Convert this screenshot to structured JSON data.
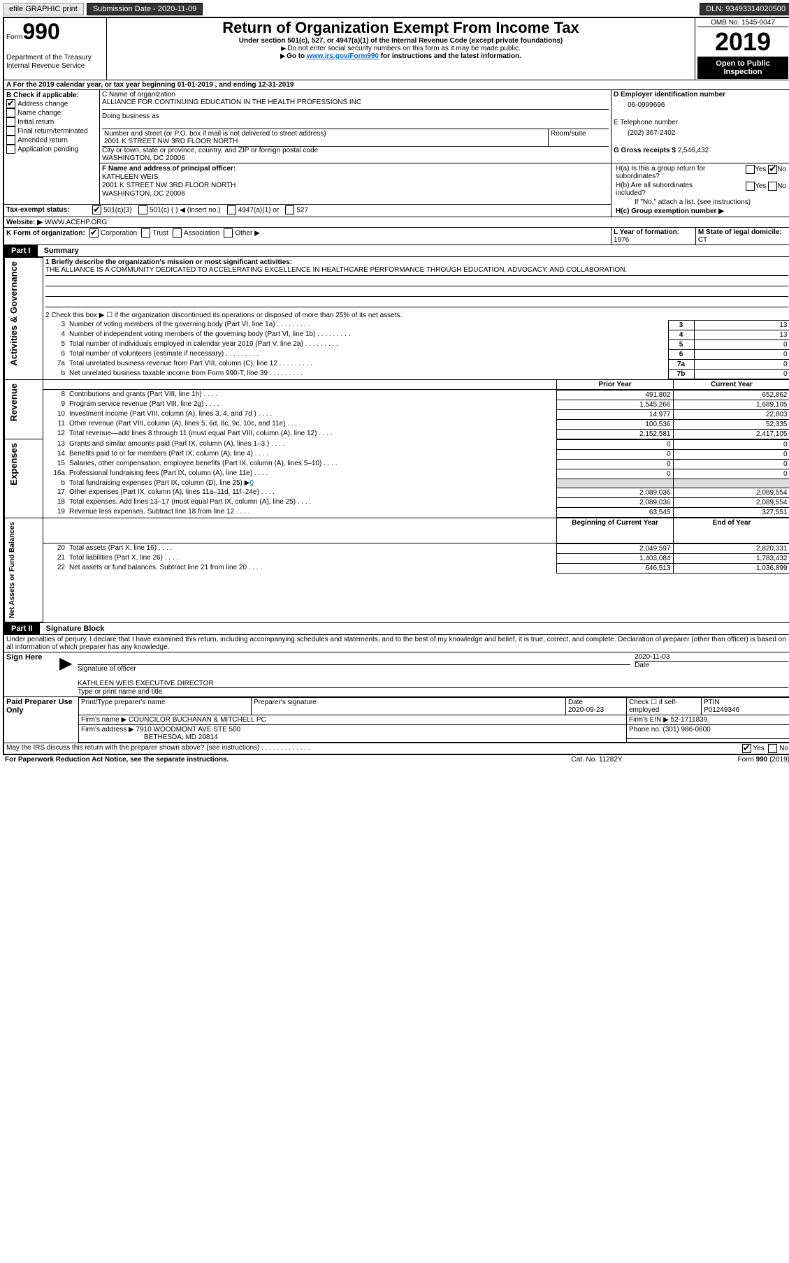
{
  "topbar": {
    "efile": "efile GRAPHIC print",
    "sub_label": "Submission Date - 2020-11-09",
    "dln": "DLN: 93493314020500"
  },
  "header": {
    "form_label": "Form",
    "form_num": "990",
    "omb": "OMB No. 1545-0047",
    "title": "Return of Organization Exempt From Income Tax",
    "subtitle": "Under section 501(c), 527, or 4947(a)(1) of the Internal Revenue Code (except private foundations)",
    "note1": "Do not enter social security numbers on this form as it may be made public.",
    "note2_pre": "Go to ",
    "note2_link": "www.irs.gov/Form990",
    "note2_post": " for instructions and the latest information.",
    "year": "2019",
    "dept": "Department of the Treasury",
    "irs": "Internal Revenue Service",
    "public": "Open to Public Inspection"
  },
  "A": {
    "line": "A For the 2019 calendar year, or tax year beginning 01-01-2019   , and ending 12-31-2019"
  },
  "B": {
    "label": "B Check if applicable:",
    "items": [
      "Address change",
      "Name change",
      "Initial return",
      "Final return/terminated",
      "Amended return",
      "Application pending"
    ],
    "checked": 0
  },
  "C": {
    "label": "C Name of organization",
    "name": "ALLIANCE FOR CONTINUING EDUCATION IN THE HEALTH PROFESSIONS INC",
    "dba_label": "Doing business as",
    "addr_label": "Number and street (or P.O. box if mail is not delivered to street address)",
    "room": "Room/suite",
    "addr": "2001 K STREET NW 3RD FLOOR NORTH",
    "city_label": "City or town, state or province, country, and ZIP or foreign postal code",
    "city": "WASHINGTON, DC  20006"
  },
  "D": {
    "label": "D Employer identification number",
    "val": "06-0999696"
  },
  "E": {
    "label": "E Telephone number",
    "val": "(202) 367-2402"
  },
  "G": {
    "label": "G Gross receipts $",
    "val": "2,546,432"
  },
  "F": {
    "label": "F  Name and address of principal officer:",
    "name": "KATHLEEN WEIS",
    "addr1": "2001 K STREET NW 3RD FLOOR NORTH",
    "addr2": "WASHINGTON, DC  20006"
  },
  "H": {
    "a": "H(a)  Is this a group return for subordinates?",
    "b": "H(b)  Are all subordinates included?",
    "b_note": "If \"No,\" attach a list. (see instructions)",
    "c": "H(c)  Group exemption number ▶",
    "yes": "Yes",
    "no": "No"
  },
  "I": {
    "label": "Tax-exempt status:",
    "opts": [
      "501(c)(3)",
      "501(c) (  ) ◀ (insert no.)",
      "4947(a)(1) or",
      "527"
    ]
  },
  "J": {
    "label": "Website: ▶",
    "val": "WWW.ACEHP.ORG"
  },
  "K": {
    "label": "K Form of organization:",
    "opts": [
      "Corporation",
      "Trust",
      "Association",
      "Other ▶"
    ]
  },
  "L": {
    "label": "L Year of formation:",
    "val": "1976"
  },
  "M": {
    "label": "M State of legal domicile:",
    "val": "CT"
  },
  "part1": {
    "label": "Part I",
    "title": "Summary"
  },
  "p1": {
    "q1": "1   Briefly describe the organization's mission or most significant activities:",
    "mission": "THE ALLIANCE IS A COMMUNITY DEDICATED TO ACCELERATING EXCELLENCE IN HEALTHCARE PERFORMANCE THROUGH EDUCATION, ADVOCACY, AND COLLABORATION.",
    "q2": "2   Check this box ▶ ☐  if the organization discontinued its operations or disposed of more than 25% of its net assets.",
    "rows_gov": [
      [
        "3",
        "Number of voting members of the governing body (Part VI, line 1a)",
        "3",
        "13"
      ],
      [
        "4",
        "Number of independent voting members of the governing body (Part VI, line 1b)",
        "4",
        "13"
      ],
      [
        "5",
        "Total number of individuals employed in calendar year 2019 (Part V, line 2a)",
        "5",
        "0"
      ],
      [
        "6",
        "Total number of volunteers (estimate if necessary)",
        "6",
        "0"
      ],
      [
        "7a",
        "Total unrelated business revenue from Part VIII, column (C), line 12",
        "7a",
        "0"
      ],
      [
        "b",
        "Net unrelated business taxable income from Form 990-T, line 39",
        "7b",
        "0"
      ]
    ],
    "col_py": "Prior Year",
    "col_cy": "Current Year",
    "rows_rev": [
      [
        "8",
        "Contributions and grants (Part VIII, line 1h)",
        "491,802",
        "652,862"
      ],
      [
        "9",
        "Program service revenue (Part VIII, line 2g)",
        "1,545,266",
        "1,689,105"
      ],
      [
        "10",
        "Investment income (Part VIII, column (A), lines 3, 4, and 7d )",
        "14,977",
        "22,803"
      ],
      [
        "11",
        "Other revenue (Part VIII, column (A), lines 5, 6d, 8c, 9c, 10c, and 11e)",
        "100,536",
        "52,335"
      ],
      [
        "12",
        "Total revenue—add lines 8 through 11 (must equal Part VIII, column (A), line 12)",
        "2,152,581",
        "2,417,105"
      ]
    ],
    "rows_exp": [
      [
        "13",
        "Grants and similar amounts paid (Part IX, column (A), lines 1–3 )",
        "0",
        "0"
      ],
      [
        "14",
        "Benefits paid to or for members (Part IX, column (A), line 4)",
        "0",
        "0"
      ],
      [
        "15",
        "Salaries, other compensation, employee benefits (Part IX, column (A), lines 5–10)",
        "0",
        "0"
      ],
      [
        "16a",
        "Professional fundraising fees (Part IX, column (A), line 11e)",
        "0",
        "0"
      ],
      [
        "b",
        "Total fundraising expenses (Part IX, column (D), line 25) ▶",
        "",
        "",
        true
      ],
      [
        "17",
        "Other expenses (Part IX, column (A), lines 11a–11d, 11f–24e)",
        "2,089,036",
        "2,089,554"
      ],
      [
        "18",
        "Total expenses. Add lines 13–17 (must equal Part IX, column (A), line 25)",
        "2,089,036",
        "2,089,554"
      ],
      [
        "19",
        "Revenue less expenses. Subtract line 18 from line 12",
        "63,545",
        "327,551"
      ]
    ],
    "fund_val": "0",
    "col_boy": "Beginning of Current Year",
    "col_eoy": "End of Year",
    "rows_net": [
      [
        "20",
        "Total assets (Part X, line 16)",
        "2,049,597",
        "2,820,331"
      ],
      [
        "21",
        "Total liabilities (Part X, line 26)",
        "1,403,084",
        "1,783,432"
      ],
      [
        "22",
        "Net assets or fund balances. Subtract line 21 from line 20",
        "646,513",
        "1,036,899"
      ]
    ],
    "side_gov": "Activities & Governance",
    "side_rev": "Revenue",
    "side_exp": "Expenses",
    "side_net": "Net Assets or Fund Balances"
  },
  "part2": {
    "label": "Part II",
    "title": "Signature Block",
    "decl": "Under penalties of perjury, I declare that I have examined this return, including accompanying schedules and statements, and to the best of my knowledge and belief, it is true, correct, and complete. Declaration of preparer (other than officer) is based on all information of which preparer has any knowledge."
  },
  "sign": {
    "here": "Sign Here",
    "sig_label": "Signature of officer",
    "date": "2020-11-03",
    "date_label": "Date",
    "name": "KATHLEEN WEIS  EXECUTIVE DIRECTOR",
    "name_label": "Type or print name and title"
  },
  "paid": {
    "label": "Paid Preparer Use Only",
    "h1": "Print/Type preparer's name",
    "h2": "Preparer's signature",
    "h3": "Date",
    "h3v": "2020-09-23",
    "h4": "Check ☐ if self-employed",
    "h5": "PTIN",
    "ptin": "P01249346",
    "firm_label": "Firm's name    ▶",
    "firm": "COUNCILOR BUCHANAN & MITCHELL PC",
    "ein_label": "Firm's EIN ▶",
    "ein": "52-1711839",
    "addr_label": "Firm's address ▶",
    "addr1": "7910 WOODMONT AVE STE 500",
    "addr2": "BETHESDA, MD  20814",
    "phone_label": "Phone no.",
    "phone": "(301) 986-0600"
  },
  "footer": {
    "discuss": "May the IRS discuss this return with the preparer shown above? (see instructions)",
    "pra": "For Paperwork Reduction Act Notice, see the separate instructions.",
    "cat": "Cat. No. 11282Y",
    "form": "Form 990 (2019)",
    "yes": "Yes",
    "no": "No"
  }
}
